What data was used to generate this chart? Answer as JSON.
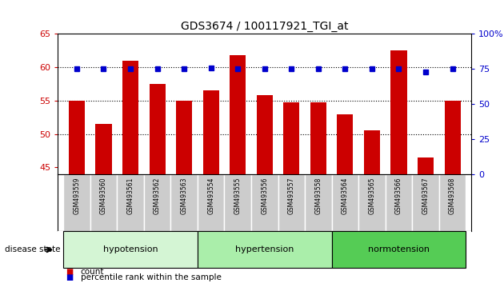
{
  "title": "GDS3674 / 100117921_TGI_at",
  "samples": [
    "GSM493559",
    "GSM493560",
    "GSM493561",
    "GSM493562",
    "GSM493563",
    "GSM493554",
    "GSM493555",
    "GSM493556",
    "GSM493557",
    "GSM493558",
    "GSM493564",
    "GSM493565",
    "GSM493566",
    "GSM493567",
    "GSM493568"
  ],
  "count_values": [
    55.0,
    51.5,
    61.0,
    57.5,
    55.0,
    56.5,
    61.8,
    55.8,
    54.8,
    54.8,
    53.0,
    50.5,
    62.5,
    46.5,
    55.0
  ],
  "percentile_values": [
    75,
    75,
    75,
    75,
    75,
    76,
    75,
    75,
    75,
    75,
    75,
    75,
    75,
    73,
    75
  ],
  "groups": [
    {
      "name": "hypotension",
      "indices": [
        0,
        1,
        2,
        3,
        4
      ],
      "color": "#d4f5d4"
    },
    {
      "name": "hypertension",
      "indices": [
        5,
        6,
        7,
        8,
        9
      ],
      "color": "#aaeeaa"
    },
    {
      "name": "normotension",
      "indices": [
        10,
        11,
        12,
        13,
        14
      ],
      "color": "#55cc55"
    }
  ],
  "ylim_left": [
    44,
    65
  ],
  "ylim_right": [
    0,
    100
  ],
  "yticks_left": [
    45,
    50,
    55,
    60,
    65
  ],
  "yticks_right": [
    0,
    25,
    50,
    75,
    100
  ],
  "bar_color": "#cc0000",
  "dot_color": "#0000cc",
  "background_color": "#ffffff",
  "tick_color_left": "#cc0000",
  "tick_color_right": "#0000cc",
  "label_area_color": "#cccccc",
  "disease_state_label": "disease state",
  "legend_count_label": "count",
  "legend_percentile_label": "percentile rank within the sample",
  "grid_yticks": [
    50,
    55,
    60
  ]
}
